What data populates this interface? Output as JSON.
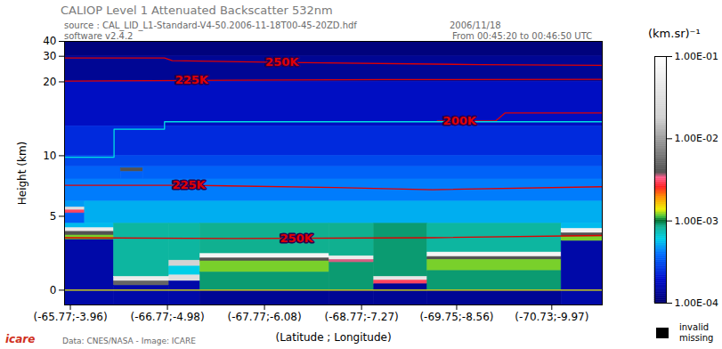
{
  "chart_data": {
    "type": "heatmap",
    "title": "CALIOP Level 1 Attenuated Backscatter 532nm",
    "subtitle": "source : CAL_LID_L1-Standard-V4-50.2006-11-18T00-45-20ZD.hdf",
    "annotations": [
      "software v2.4.2",
      "2006/11/18",
      "From 00:45:20 to 00:46:50 UTC",
      "Data: CNES/NASA - Image: ICARE",
      "icare"
    ],
    "x_label": "(Latitude ; Longitude)",
    "y_label": "Height (km)",
    "xlim": [
      -65.71,
      -71.25
    ],
    "xticks": [
      {
        "value": -65.77,
        "label": "(-65.77;-3.96)"
      },
      {
        "value": -66.77,
        "label": "(-66.77;-4.98)"
      },
      {
        "value": -67.77,
        "label": "(-67.77;-6.08)"
      },
      {
        "value": -68.77,
        "label": "(-68.77;-7.27)"
      },
      {
        "value": -69.75,
        "label": "(-69.75;-8.56)"
      },
      {
        "value": -70.73,
        "label": "(-70.73;-9.97)"
      }
    ],
    "ylim": [
      -1,
      40
    ],
    "yticks": [
      0,
      5,
      10,
      20,
      30,
      40
    ],
    "cells": [
      [
        -65.71,
        -71.25,
        30,
        40,
        0.00011
      ],
      [
        -65.71,
        -71.25,
        20,
        30,
        0.00013
      ],
      [
        -65.71,
        -71.25,
        14,
        20,
        0.00018
      ],
      [
        -65.71,
        -71.25,
        10,
        14,
        0.00024
      ],
      [
        -65.71,
        -71.25,
        8.5,
        10,
        0.0003
      ],
      [
        -65.71,
        -66.29,
        7.5,
        8.5,
        0.00036
      ],
      [
        -66.29,
        -66.52,
        8.3,
        8.5,
        0.00036
      ],
      [
        -66.29,
        -66.52,
        8.0,
        8.3,
        0.004
      ],
      [
        -66.29,
        -66.52,
        7.5,
        8.0,
        0.00036
      ],
      [
        -66.52,
        -71.25,
        7.5,
        8.5,
        0.00036
      ],
      [
        -65.71,
        -71.25,
        6,
        7.5,
        0.00042
      ],
      [
        -65.71,
        -65.92,
        5.6,
        6,
        0.00048
      ],
      [
        -65.71,
        -65.92,
        5.4,
        5.6,
        0.03
      ],
      [
        -65.71,
        -65.92,
        5.2,
        5.4,
        0.003
      ],
      [
        -65.71,
        -65.92,
        4.5,
        5.2,
        0.00035
      ],
      [
        -65.92,
        -71.25,
        4.5,
        6,
        0.00052
      ],
      [
        -65.71,
        -66.22,
        4.2,
        4.5,
        0.00055
      ],
      [
        -65.71,
        -66.22,
        3.95,
        4.2,
        0.05
      ],
      [
        -65.71,
        -66.22,
        3.7,
        3.95,
        0.004
      ],
      [
        -65.71,
        -66.22,
        3.4,
        3.7,
        0.0012
      ],
      [
        -65.71,
        -66.22,
        -1,
        3.4,
        0.00015
      ],
      [
        -66.22,
        -66.79,
        0.9,
        4.5,
        0.0008
      ],
      [
        -66.22,
        -66.79,
        0.6,
        0.9,
        0.05
      ],
      [
        -66.22,
        -66.79,
        0.3,
        0.6,
        0.005
      ],
      [
        -66.22,
        -66.79,
        -1,
        0.3,
        0.00015
      ],
      [
        -66.79,
        -67.11,
        2.0,
        4.5,
        0.0008
      ],
      [
        -66.79,
        -67.11,
        1.6,
        2.0,
        0.02
      ],
      [
        -66.79,
        -67.11,
        1.0,
        1.6,
        0.0006
      ],
      [
        -66.79,
        -67.11,
        0.6,
        1.0,
        0.03
      ],
      [
        -66.79,
        -67.11,
        -1,
        0.6,
        0.00015
      ],
      [
        -67.11,
        -68.44,
        2.45,
        4.5,
        0.00085
      ],
      [
        -67.11,
        -68.44,
        2.15,
        2.45,
        0.07
      ],
      [
        -67.11,
        -68.44,
        1.95,
        2.15,
        0.004
      ],
      [
        -67.11,
        -68.44,
        1.2,
        1.95,
        0.0012
      ],
      [
        -67.11,
        -68.44,
        0,
        1.2,
        0.0009
      ],
      [
        -67.11,
        -68.44,
        -1,
        0,
        0.00013
      ],
      [
        -68.44,
        -68.9,
        2.3,
        4.5,
        0.00085
      ],
      [
        -68.44,
        -68.9,
        2.05,
        2.3,
        0.05
      ],
      [
        -68.44,
        -68.9,
        1.85,
        2.05,
        0.0035
      ],
      [
        -68.44,
        -68.9,
        0,
        1.85,
        0.0009
      ],
      [
        -68.44,
        -68.9,
        -1,
        0,
        0.00013
      ],
      [
        -68.9,
        -69.45,
        0.9,
        4.5,
        0.0009
      ],
      [
        -68.9,
        -69.45,
        0.65,
        0.9,
        0.04
      ],
      [
        -68.9,
        -69.45,
        0.4,
        0.65,
        0.003
      ],
      [
        -68.9,
        -69.45,
        -1,
        0.4,
        0.00013
      ],
      [
        -69.45,
        -70.83,
        2.55,
        4.5,
        0.0008
      ],
      [
        -69.45,
        -70.83,
        2.25,
        2.55,
        0.07
      ],
      [
        -69.45,
        -70.83,
        2.05,
        2.25,
        0.004
      ],
      [
        -69.45,
        -70.83,
        1.3,
        2.05,
        0.0012
      ],
      [
        -69.45,
        -70.83,
        0,
        1.3,
        0.0009
      ],
      [
        -69.45,
        -70.83,
        -1,
        0,
        0.00013
      ],
      [
        -70.83,
        -71.25,
        4.15,
        4.5,
        0.00055
      ],
      [
        -70.83,
        -71.25,
        3.85,
        4.15,
        0.06
      ],
      [
        -70.83,
        -71.25,
        3.6,
        3.85,
        0.004
      ],
      [
        -70.83,
        -71.25,
        3.3,
        3.6,
        0.0012
      ],
      [
        -70.83,
        -71.25,
        -1,
        3.3,
        0.00015
      ]
    ],
    "lines": [
      {
        "name": "250K",
        "color": "#e00000",
        "x": [
          -65.71,
          -66.74,
          -66.82,
          -68.0,
          -70.0,
          -71.25
        ],
        "y": [
          29.3,
          29.3,
          28.2,
          27.5,
          26.6,
          26.3
        ],
        "label_x": -67.95
      },
      {
        "name": "225K",
        "color": "#e00000",
        "x": [
          -65.71,
          -67.0,
          -69.0,
          -71.25
        ],
        "y": [
          20.1,
          20.2,
          20.5,
          20.6
        ],
        "label_x": -67.02
      },
      {
        "name": "200K",
        "color": "#e00000",
        "x": [
          -69.55,
          -70.15,
          -70.25,
          -71.25
        ],
        "y": [
          14.7,
          14.7,
          15.8,
          15.8
        ],
        "label_x": -69.78
      },
      {
        "name": "225K",
        "color": "#e00000",
        "x": [
          -65.71,
          -67.0,
          -68.5,
          -69.5,
          -71.25
        ],
        "y": [
          7.1,
          7.1,
          6.95,
          6.8,
          7.0
        ],
        "label_x": -66.99
      },
      {
        "name": "250K",
        "color": "#e00000",
        "x": [
          -65.71,
          -67.5,
          -69.5,
          -71.25
        ],
        "y": [
          3.55,
          3.5,
          3.55,
          3.7
        ],
        "label_x": -68.1
      },
      {
        "color": "#00e0e0",
        "x": [
          -65.71,
          -66.22,
          -66.22,
          -66.74,
          -66.74,
          -71.25
        ],
        "y": [
          9.8,
          9.8,
          13.6,
          13.6,
          14.6,
          14.6
        ]
      },
      {
        "color": "#f0f000",
        "x": [
          -65.71,
          -71.25
        ],
        "y": [
          0,
          0
        ]
      }
    ],
    "colorbar": {
      "label": "(km.sr)⁻¹",
      "log": true,
      "range": [
        0.0001,
        0.1
      ],
      "ticks": [
        {
          "value": 0.1,
          "label": "1.00E-01"
        },
        {
          "value": 0.01,
          "label": "1.00E-02"
        },
        {
          "value": 0.001,
          "label": "1.00E-03"
        },
        {
          "value": 0.0001,
          "label": "1.00E-04"
        }
      ],
      "missing_labels": [
        "invalid",
        "missing"
      ]
    }
  }
}
